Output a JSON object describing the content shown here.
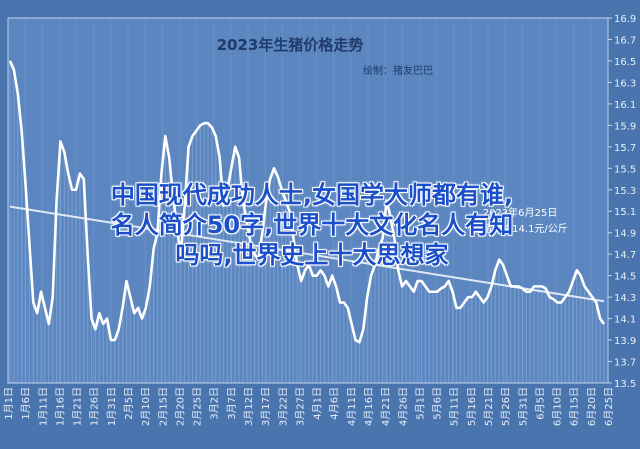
{
  "chart_data": {
    "type": "line",
    "title": "2023年生猪价格走势",
    "subtitle": "绘制：猪友巴巴",
    "annotation": "2023年6月25日\n生猪价格14.1元/公斤",
    "y_ticks": [
      13.5,
      13.7,
      13.9,
      14.1,
      14.3,
      14.5,
      14.7,
      14.9,
      15.1,
      15.3,
      15.5,
      15.7,
      15.9,
      16.1,
      16.3,
      16.5,
      16.7,
      16.9
    ],
    "ylim": [
      13.5,
      16.9
    ],
    "x_ticks": [
      "1月1日",
      "1月6日",
      "1月11日",
      "1月16日",
      "1月21日",
      "1月26日",
      "1月31日",
      "2月5日",
      "2月10日",
      "2月15日",
      "2月20日",
      "2月25日",
      "3月2日",
      "3月7日",
      "3月12日",
      "3月17日",
      "3月22日",
      "3月27日",
      "4月1日",
      "4月6日",
      "4月11日",
      "4月16日",
      "4月21日",
      "4月26日",
      "5月1日",
      "5月6日",
      "5月11日",
      "5月16日",
      "5月21日",
      "5月26日",
      "5月31日",
      "6月5日",
      "6月10日",
      "6月15日",
      "6月20日",
      "6月25日"
    ],
    "series": [
      {
        "values": [
          16.5,
          16.42,
          16.2,
          15.85,
          15.35,
          14.8,
          14.25,
          14.15,
          14.35,
          14.2,
          14.05,
          14.3,
          15.2,
          15.75,
          15.65,
          15.45,
          15.3,
          15.3,
          15.45,
          15.4,
          14.7,
          14.1,
          14.0,
          14.15,
          14.05,
          14.1,
          13.9,
          13.9,
          14.0,
          14.2,
          14.45,
          14.3,
          14.15,
          14.2,
          14.1,
          14.2,
          14.4,
          14.75,
          14.9,
          15.45,
          15.8,
          15.6,
          15.25,
          14.95,
          14.7,
          15.15,
          15.7,
          15.8,
          15.85,
          15.9,
          15.92,
          15.92,
          15.88,
          15.8,
          15.6,
          15.15,
          15.3,
          15.5,
          15.7,
          15.6,
          15.2,
          15.0,
          14.8,
          14.7,
          14.65,
          14.9,
          15.2,
          15.4,
          15.5,
          15.42,
          15.3,
          15.2,
          15.1,
          14.85,
          14.6,
          14.45,
          14.55,
          14.6,
          14.5,
          14.5,
          14.55,
          14.5,
          14.4,
          14.5,
          14.4,
          14.25,
          14.25,
          14.2,
          14.05,
          13.9,
          13.88,
          14.0,
          14.3,
          14.5,
          14.6,
          14.75,
          14.85,
          15.2,
          15.05,
          14.85,
          14.55,
          14.4,
          14.45,
          14.4,
          14.35,
          14.45,
          14.45,
          14.4,
          14.35,
          14.35,
          14.35,
          14.38,
          14.4,
          14.45,
          14.35,
          14.2,
          14.2,
          14.25,
          14.3,
          14.3,
          14.35,
          14.3,
          14.25,
          14.3,
          14.4,
          14.55,
          14.65,
          14.6,
          14.5,
          14.4,
          14.4,
          14.4,
          14.38,
          14.35,
          14.35,
          14.4,
          14.4,
          14.4,
          14.38,
          14.3,
          14.28,
          14.25,
          14.25,
          14.3,
          14.35,
          14.45,
          14.55,
          14.5,
          14.4,
          14.35,
          14.3,
          14.25,
          14.1,
          14.05
        ]
      }
    ],
    "grid": "vertical",
    "trendline": true
  },
  "overlay": {
    "line1": "中国现代成功人士,女国学大师都有谁,",
    "line2": "名人简介50字,世界十大文化名人有知",
    "line3": "吗吗,世界史上十大思想家"
  },
  "colors": {
    "background": "#4a74ad",
    "plot_fill": "#5b86c0",
    "grid": "#8fb0d9",
    "line": "#ffffff",
    "title": "#1f3b6b",
    "axis_text": "#e7eef8",
    "overlay_text": "#1a4fc9"
  }
}
